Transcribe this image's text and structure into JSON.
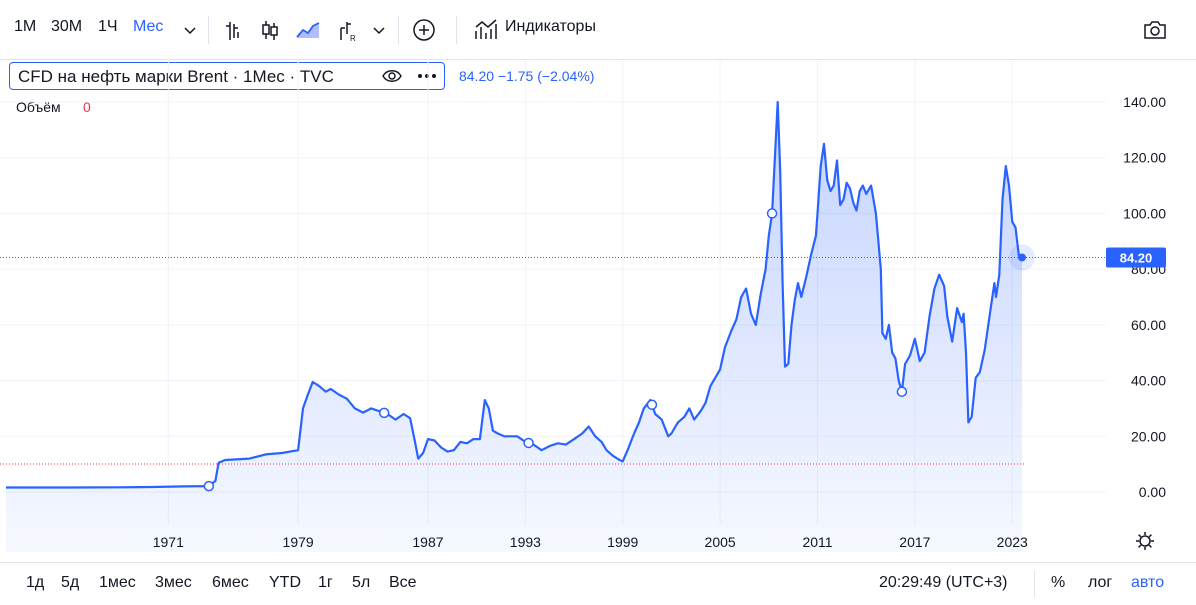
{
  "toolbar": {
    "intervals": [
      "1М",
      "30М",
      "1Ч",
      "Мес"
    ],
    "indicators_label": "Индикаторы"
  },
  "legend": {
    "title": "CFD на нефть марки Brent · 1Мес · TVC",
    "values": "84.20  −1.75 (−2.04%)",
    "volume_label": "Объём",
    "volume_value": "0"
  },
  "colors": {
    "line": "#2962ff",
    "price_tag_bg": "#2962ff",
    "volume_text": "#f23645",
    "grid": "#f0f3fa"
  },
  "price_tag": "84.20",
  "bottom": {
    "ranges": [
      "1д",
      "5д",
      "1мес",
      "3мес",
      "6мес",
      "YTD",
      "1г",
      "5л",
      "Все"
    ],
    "time": "20:29:49 (UTC+3)",
    "percent": "%",
    "log": "лог",
    "auto": "авто"
  },
  "chart_data": {
    "type": "area",
    "title": "CFD на нефть марки Brent · 1Мес · TVC",
    "xlabel": "",
    "ylabel": "",
    "ylim": [
      -5,
      145
    ],
    "y_ticks": [
      "140.00",
      "120.00",
      "100.00",
      "80.00",
      "60.00",
      "40.00",
      "20.00",
      "0.00"
    ],
    "x_ticks": [
      "1971",
      "1979",
      "1987",
      "1993",
      "1999",
      "2005",
      "2011",
      "2017",
      "2023"
    ],
    "grid": true,
    "last_value": 84.2,
    "series": [
      {
        "x": [
          1961.0,
          1965.0,
          1968.0,
          1970.0,
          1972.0,
          1973.5,
          1973.9,
          1974.1,
          1974.5,
          1976.0,
          1977.0,
          1978.0,
          1979.0,
          1979.3,
          1979.6,
          1979.9,
          1980.3,
          1980.7,
          1981.0,
          1981.5,
          1982.0,
          1982.5,
          1983.0,
          1983.5,
          1984.0,
          1984.5,
          1985.0,
          1985.5,
          1985.9,
          1986.2,
          1986.4,
          1986.7,
          1987.0,
          1987.4,
          1987.8,
          1988.2,
          1988.6,
          1989.0,
          1989.4,
          1989.8,
          1990.2,
          1990.5,
          1990.75,
          1991.0,
          1991.3,
          1991.7,
          1992.0,
          1992.5,
          1993.0,
          1993.5,
          1994.0,
          1994.5,
          1995.0,
          1995.5,
          1996.0,
          1996.5,
          1996.9,
          1997.3,
          1997.7,
          1998.0,
          1998.4,
          1998.8,
          1999.0,
          1999.3,
          1999.7,
          2000.0,
          2000.3,
          2000.7,
          2001.0,
          2001.4,
          2001.8,
          2002.0,
          2002.4,
          2002.8,
          2003.1,
          2003.4,
          2003.8,
          2004.1,
          2004.4,
          2004.8,
          2005.0,
          2005.3,
          2005.7,
          2006.0,
          2006.3,
          2006.6,
          2006.9,
          2007.2,
          2007.5,
          2007.8,
          2008.0,
          2008.2,
          2008.4,
          2008.55,
          2008.7,
          2008.85,
          2009.0,
          2009.2,
          2009.4,
          2009.6,
          2009.8,
          2010.0,
          2010.3,
          2010.6,
          2010.9,
          2011.0,
          2011.2,
          2011.4,
          2011.6,
          2011.8,
          2012.0,
          2012.2,
          2012.4,
          2012.6,
          2012.8,
          2013.0,
          2013.2,
          2013.4,
          2013.6,
          2013.8,
          2014.0,
          2014.3,
          2014.6,
          2014.9,
          2015.0,
          2015.2,
          2015.4,
          2015.6,
          2015.8,
          2016.0,
          2016.2,
          2016.4,
          2016.7,
          2017.0,
          2017.3,
          2017.6,
          2017.9,
          2018.2,
          2018.5,
          2018.8,
          2019.0,
          2019.3,
          2019.6,
          2019.9,
          2020.0,
          2020.15,
          2020.3,
          2020.5,
          2020.75,
          2021.0,
          2021.3,
          2021.6,
          2021.9,
          2022.0,
          2022.2,
          2022.4,
          2022.6,
          2022.8,
          2023.0,
          2023.2,
          2023.4,
          2023.6
        ],
        "values": [
          1.6,
          1.6,
          1.7,
          1.8,
          2.0,
          2.1,
          4.0,
          10.5,
          11.5,
          12.0,
          13.5,
          14.0,
          15.0,
          30.0,
          35.0,
          39.5,
          38.0,
          36.0,
          37.0,
          35.0,
          33.5,
          30.0,
          28.5,
          30.0,
          29.0,
          28.0,
          26.0,
          28.0,
          26.5,
          18.0,
          12.0,
          14.0,
          19.0,
          18.5,
          16.0,
          14.5,
          15.0,
          18.0,
          17.5,
          19.0,
          19.0,
          33.0,
          30.0,
          22.0,
          21.0,
          20.0,
          20.0,
          20.0,
          18.0,
          17.0,
          15.0,
          16.5,
          17.5,
          17.0,
          19.0,
          21.0,
          23.5,
          20.0,
          18.0,
          15.0,
          13.0,
          11.5,
          11.0,
          15.0,
          21.0,
          25.0,
          30.0,
          33.0,
          28.0,
          26.0,
          20.0,
          21.0,
          25.0,
          27.0,
          30.0,
          26.0,
          29.0,
          32.0,
          38.0,
          42.0,
          44.0,
          52.0,
          58.0,
          62.0,
          70.0,
          73.0,
          64.0,
          60.0,
          71.0,
          80.0,
          92.0,
          100.0,
          123.0,
          140.0,
          115.0,
          75.0,
          45.0,
          46.0,
          60.0,
          69.0,
          75.0,
          70.0,
          77.0,
          85.0,
          92.0,
          100.0,
          117.0,
          125.0,
          112.0,
          108.0,
          110.0,
          119.0,
          103.0,
          105.0,
          111.0,
          109.0,
          104.0,
          101.0,
          108.0,
          110.0,
          107.0,
          110.0,
          100.0,
          80.0,
          57.0,
          55.0,
          60.0,
          50.0,
          48.0,
          40.0,
          36.0,
          46.0,
          49.0,
          55.0,
          47.0,
          50.0,
          63.0,
          73.0,
          78.0,
          74.0,
          63.0,
          54.0,
          66.0,
          61.0,
          64.0,
          50.0,
          25.0,
          27.0,
          41.0,
          43.0,
          51.0,
          63.0,
          75.0,
          70.0,
          78.0,
          105.0,
          117.0,
          110.0,
          97.0,
          95.0,
          85.0,
          84.2
        ]
      }
    ],
    "markers_x": [
      1973.5,
      1984.3,
      1993.2,
      2000.8,
      2008.2,
      2016.2
    ]
  }
}
